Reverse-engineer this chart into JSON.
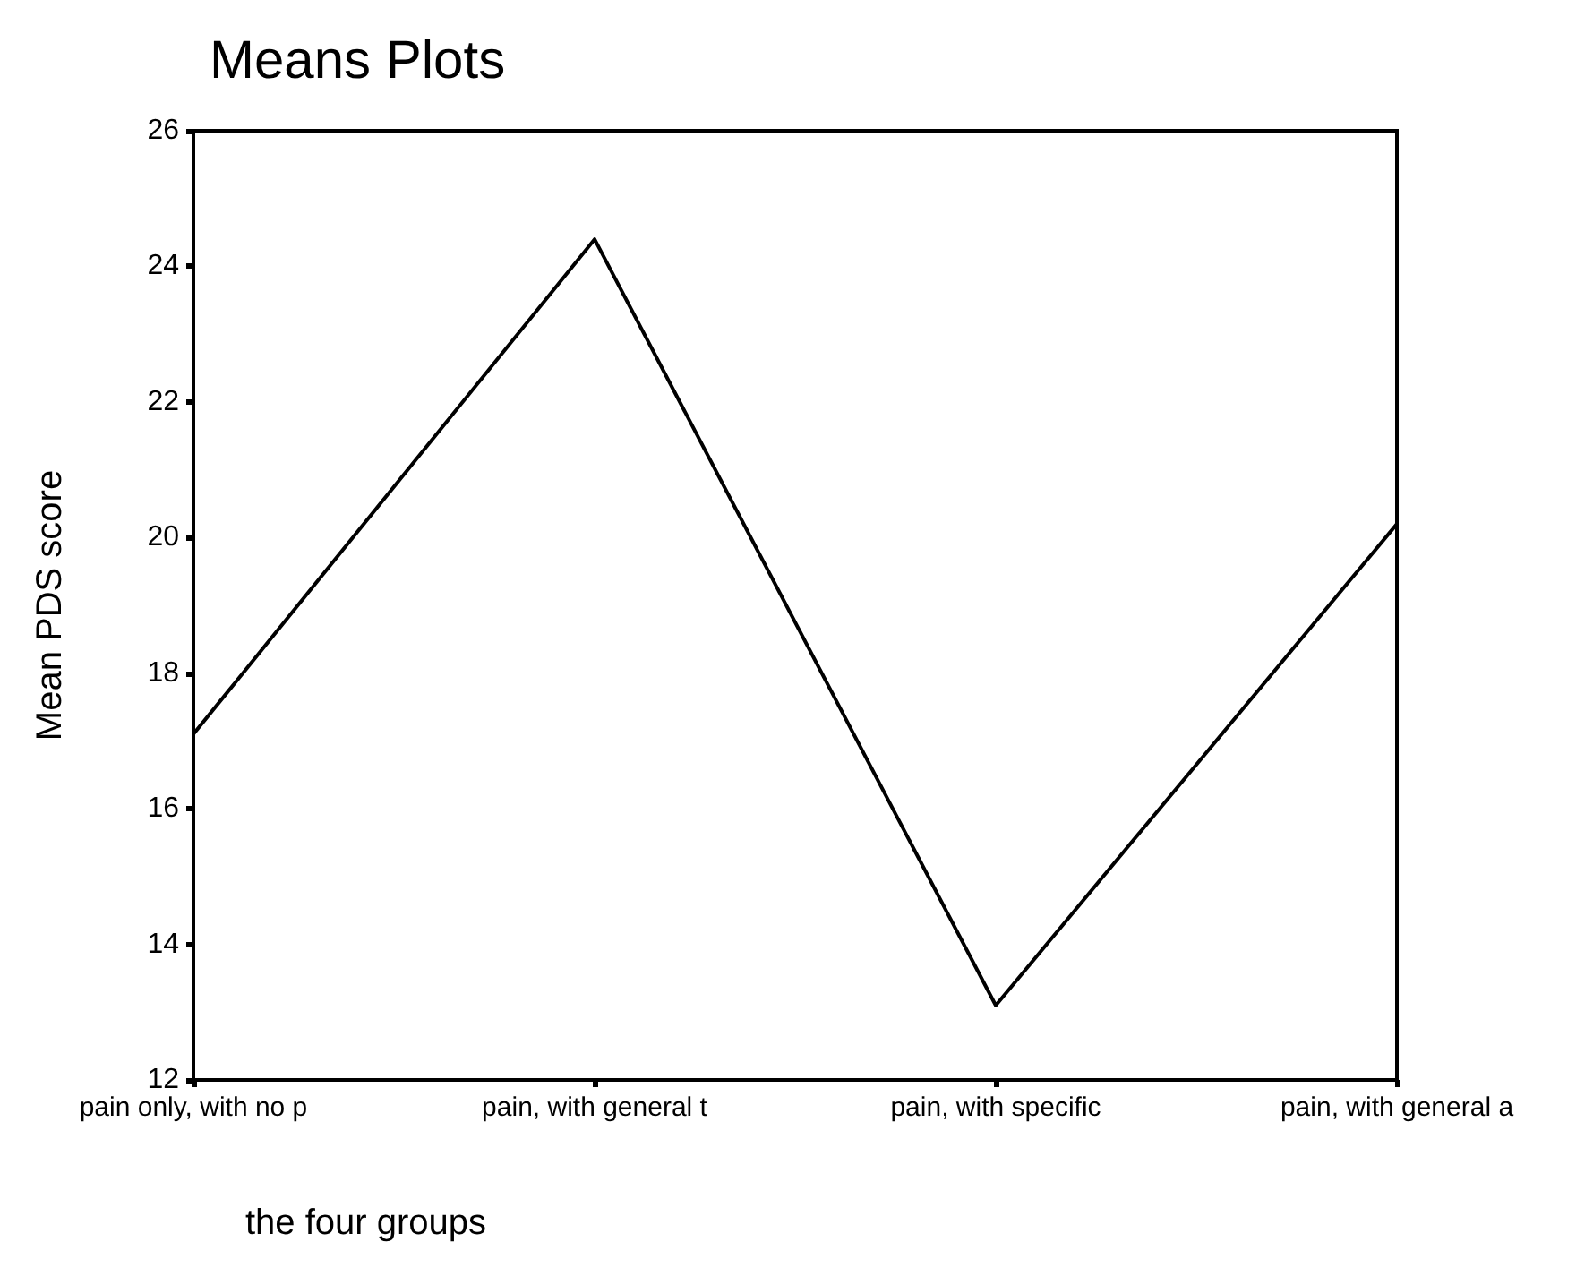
{
  "chart_data": {
    "type": "line",
    "title": "Means Plots",
    "xlabel": "the four groups",
    "ylabel": "Mean PDS score",
    "categories": [
      "pain only, with no p",
      "pain, with general t",
      "pain, with specific",
      "pain, with general a"
    ],
    "series": [
      {
        "color": "#000000",
        "values": [
          17.1,
          24.4,
          13.1,
          20.2
        ]
      }
    ],
    "ylim": [
      12,
      26
    ],
    "yticks": [
      12,
      14,
      16,
      18,
      20,
      22,
      24,
      26
    ],
    "marker": "none",
    "line_style": "solid"
  }
}
